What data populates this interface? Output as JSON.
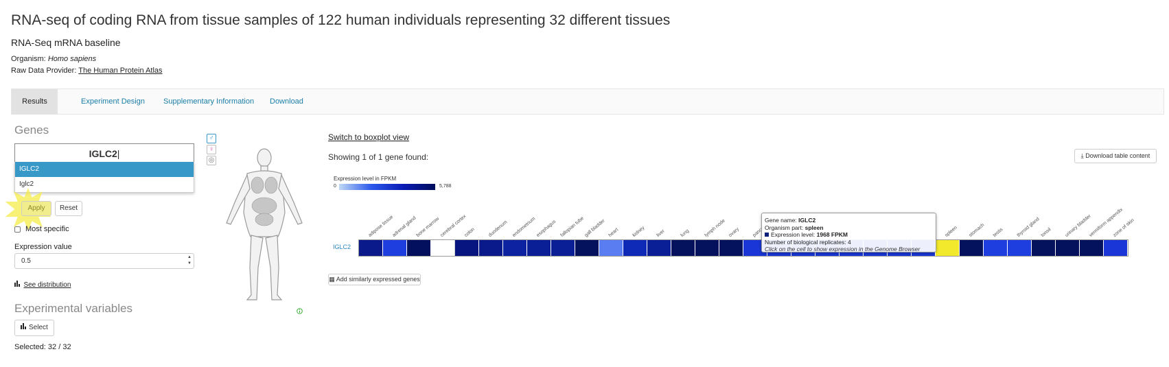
{
  "header": {
    "title": "RNA-seq of coding RNA from tissue samples of 122 human individuals representing 32 different tissues",
    "subtitle": "RNA-Seq mRNA baseline",
    "organism_label": "Organism:",
    "organism_value": "Homo sapiens",
    "provider_label": "Raw Data Provider:",
    "provider_value": "The Human Protein Atlas"
  },
  "tabs": [
    {
      "label": "Results",
      "active": true
    },
    {
      "label": "Experiment Design",
      "active": false
    },
    {
      "label": "Supplementary Information",
      "active": false
    },
    {
      "label": "Download",
      "active": false
    }
  ],
  "sidebar": {
    "genes_heading": "Genes",
    "gene_input_value": "IGLC2",
    "suggestions": [
      "IGLC2",
      "Iglc2"
    ],
    "apply_label": "Apply",
    "reset_label": "Reset",
    "most_specific_label": "Most specific",
    "expression_label": "Expression value",
    "expression_value": "0.5",
    "see_distribution": "See distribution",
    "exp_vars_heading": "Experimental variables",
    "select_label": "Select",
    "selected_text": "Selected: 32 / 32"
  },
  "main": {
    "switch_view": "Switch to boxplot view",
    "showing": "Showing 1 of 1 gene found:",
    "download_label": "Download table content",
    "legend_title": "Expression level in FPKM",
    "legend_min": "0",
    "legend_max": "5,788",
    "gene_label": "IGLC2",
    "add_similar": "Add similarly expressed genes"
  },
  "heatmap": {
    "tissues": [
      "adipose tissue",
      "adrenal gland",
      "bone marrow",
      "cerebral cortex",
      "colon",
      "duodenum",
      "endometrium",
      "esophagus",
      "fallopian tube",
      "gall bladder",
      "heart",
      "kidney",
      "liver",
      "lung",
      "lymph node",
      "ovary",
      "pancreas",
      "",
      "",
      "",
      "",
      "",
      "",
      "",
      "spleen",
      "stomach",
      "testis",
      "thyroid gland",
      "tonsil",
      "urinary bladder",
      "vermiform appendix",
      "zone of skin"
    ],
    "colors": [
      "#0a1a8a",
      "#1f3ee0",
      "#03105e",
      "#ffffff",
      "#061580",
      "#0a1a8a",
      "#0d22a0",
      "#0a1e95",
      "#0a1e95",
      "#04125e",
      "#5a7ef2",
      "#102ab8",
      "#0a1e95",
      "#04125e",
      "#04125e",
      "#04125e",
      "#1a36d6",
      "#1a36d6",
      "#1a36d6",
      "#1a36d6",
      "#1a36d6",
      "#1a36d6",
      "#1a36d6",
      "#1a36d6",
      "#f3e92c",
      "#04125e",
      "#1f3ee0",
      "#1f3ee0",
      "#04125e",
      "#04125e",
      "#04125e",
      "#1a36d6"
    ]
  },
  "tooltip": {
    "gene_name_label": "Gene name:",
    "gene_name": "IGLC2",
    "organism_part_label": "Organism part:",
    "organism_part": "spleen",
    "expression_label": "Expression level:",
    "expression_value": "1968 FPKM",
    "replicates_label": "Number of biological replicates:",
    "replicates_value": "4",
    "note": "Click on the cell to show expression in the Genome Browser"
  }
}
